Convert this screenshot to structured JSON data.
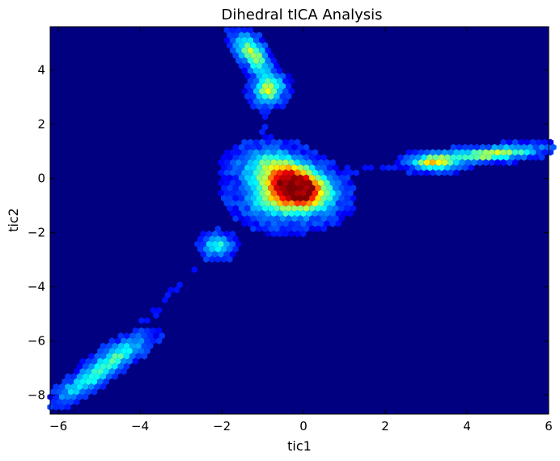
{
  "chart_data": {
    "type": "heatmap",
    "subtype": "hexbin",
    "title": "Dihedral tICA Analysis",
    "xlabel": "tic1",
    "ylabel": "tic2",
    "xlim": [
      -6.2,
      6.0
    ],
    "ylim": [
      -8.7,
      5.6
    ],
    "xticks": [
      -6,
      -4,
      -2,
      0,
      2,
      4,
      6
    ],
    "xtick_labels": [
      "−6",
      "−4",
      "−2",
      "0",
      "2",
      "4",
      "6"
    ],
    "yticks": [
      -8,
      -6,
      -4,
      -2,
      0,
      2,
      4
    ],
    "ytick_labels": [
      "−8",
      "−6",
      "−4",
      "−2",
      "0",
      "2",
      "4"
    ],
    "colormap": "jet",
    "background_color": "#000080",
    "grid": false,
    "clusters": [
      {
        "x": -0.1,
        "y": -0.3,
        "sx": 0.45,
        "sy": 0.5,
        "rho": -0.3,
        "peak": 1.0
      },
      {
        "x": -0.5,
        "y": -0.6,
        "sx": 0.55,
        "sy": 0.55,
        "rho": 0.0,
        "peak": 0.55
      },
      {
        "x": -0.9,
        "y": 0.5,
        "sx": 0.45,
        "sy": 0.4,
        "rho": 0.0,
        "peak": 0.3
      },
      {
        "x": -1.25,
        "y": 4.6,
        "sx": 0.25,
        "sy": 0.45,
        "rho": -0.6,
        "peak": 0.5
      },
      {
        "x": -0.85,
        "y": 3.3,
        "sx": 0.22,
        "sy": 0.3,
        "rho": 0.0,
        "peak": 0.55
      },
      {
        "x": 3.2,
        "y": 0.6,
        "sx": 0.35,
        "sy": 0.18,
        "rho": 0.0,
        "peak": 0.6
      },
      {
        "x": 4.6,
        "y": 0.9,
        "sx": 0.7,
        "sy": 0.17,
        "rho": 0.5,
        "peak": 0.55
      },
      {
        "x": -2.1,
        "y": -2.5,
        "sx": 0.2,
        "sy": 0.25,
        "rho": 0.0,
        "peak": 0.35
      },
      {
        "x": -4.6,
        "y": -6.6,
        "sx": 0.45,
        "sy": 0.45,
        "rho": 0.8,
        "peak": 0.35
      },
      {
        "x": -5.4,
        "y": -7.6,
        "sx": 0.4,
        "sy": 0.4,
        "rho": 0.8,
        "peak": 0.3
      }
    ]
  }
}
